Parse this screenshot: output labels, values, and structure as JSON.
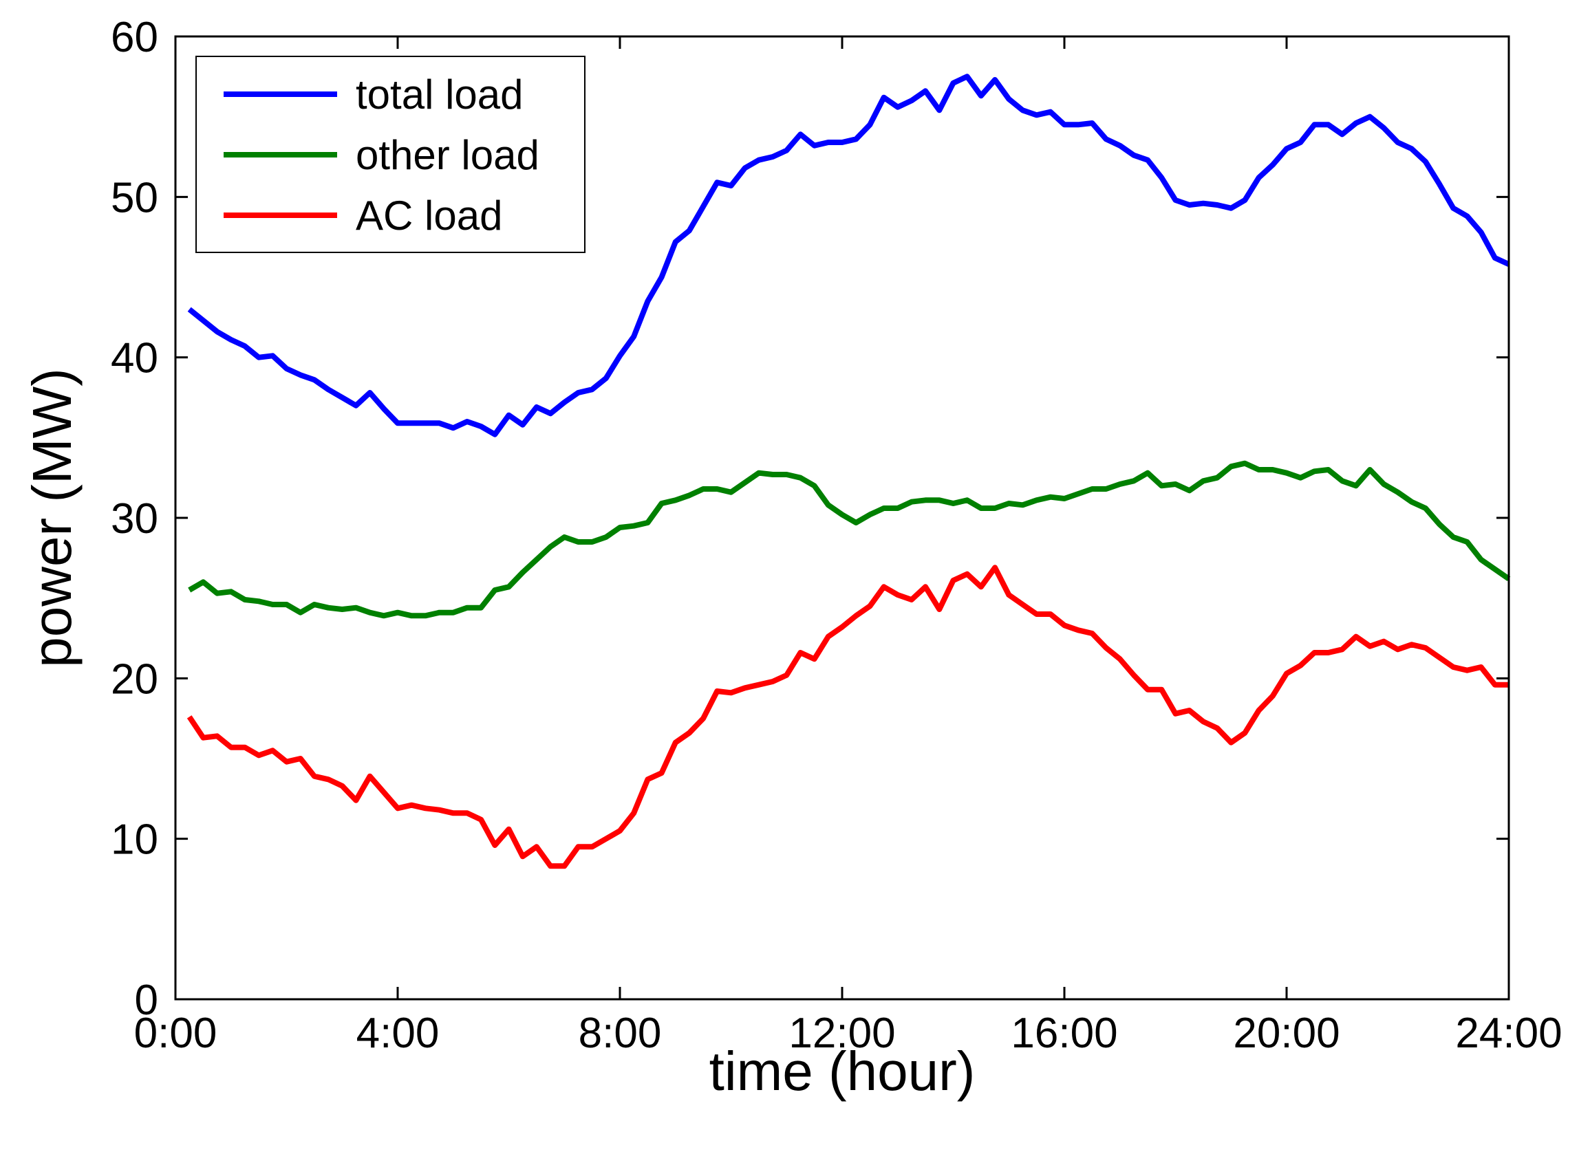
{
  "chart_data": {
    "type": "line",
    "xlabel": "time (hour)",
    "ylabel": "power (MW)",
    "xlim": [
      0,
      24
    ],
    "ylim": [
      0,
      60
    ],
    "x_ticks": [
      {
        "value": 0,
        "label": "0:00"
      },
      {
        "value": 4,
        "label": "4:00"
      },
      {
        "value": 8,
        "label": "8:00"
      },
      {
        "value": 12,
        "label": "12:00"
      },
      {
        "value": 16,
        "label": "16:00"
      },
      {
        "value": 20,
        "label": "20:00"
      },
      {
        "value": 24,
        "label": "24:00"
      }
    ],
    "y_ticks": [
      {
        "value": 0,
        "label": "0"
      },
      {
        "value": 10,
        "label": "10"
      },
      {
        "value": 20,
        "label": "20"
      },
      {
        "value": 30,
        "label": "30"
      },
      {
        "value": 40,
        "label": "40"
      },
      {
        "value": 50,
        "label": "50"
      },
      {
        "value": 60,
        "label": "60"
      }
    ],
    "grid": false,
    "legend_position": "top-left",
    "series": [
      {
        "name": "total load",
        "color": "#0000FF",
        "points": [
          [
            0.25,
            43.0
          ],
          [
            0.5,
            42.3
          ],
          [
            0.75,
            41.6
          ],
          [
            1.0,
            41.1
          ],
          [
            1.25,
            40.7
          ],
          [
            1.5,
            40.0
          ],
          [
            1.75,
            40.1
          ],
          [
            2.0,
            39.3
          ],
          [
            2.25,
            38.9
          ],
          [
            2.5,
            38.6
          ],
          [
            2.75,
            38.0
          ],
          [
            3.0,
            37.5
          ],
          [
            3.25,
            37.0
          ],
          [
            3.5,
            37.8
          ],
          [
            3.75,
            36.8
          ],
          [
            4.0,
            35.9
          ],
          [
            4.25,
            35.9
          ],
          [
            4.5,
            35.9
          ],
          [
            4.75,
            35.9
          ],
          [
            5.0,
            35.6
          ],
          [
            5.25,
            36.0
          ],
          [
            5.5,
            35.7
          ],
          [
            5.75,
            35.2
          ],
          [
            6.0,
            36.4
          ],
          [
            6.25,
            35.8
          ],
          [
            6.5,
            36.9
          ],
          [
            6.75,
            36.5
          ],
          [
            7.0,
            37.2
          ],
          [
            7.25,
            37.8
          ],
          [
            7.5,
            38.0
          ],
          [
            7.75,
            38.7
          ],
          [
            8.0,
            40.1
          ],
          [
            8.25,
            41.3
          ],
          [
            8.5,
            43.5
          ],
          [
            8.75,
            45.0
          ],
          [
            9.0,
            47.2
          ],
          [
            9.25,
            47.9
          ],
          [
            9.5,
            49.4
          ],
          [
            9.75,
            50.9
          ],
          [
            10.0,
            50.7
          ],
          [
            10.25,
            51.8
          ],
          [
            10.5,
            52.3
          ],
          [
            10.75,
            52.5
          ],
          [
            11.0,
            52.9
          ],
          [
            11.25,
            53.9
          ],
          [
            11.5,
            53.2
          ],
          [
            11.75,
            53.4
          ],
          [
            12.0,
            53.4
          ],
          [
            12.25,
            53.6
          ],
          [
            12.5,
            54.5
          ],
          [
            12.75,
            56.2
          ],
          [
            13.0,
            55.6
          ],
          [
            13.25,
            56.0
          ],
          [
            13.5,
            56.6
          ],
          [
            13.75,
            55.4
          ],
          [
            14.0,
            57.1
          ],
          [
            14.25,
            57.5
          ],
          [
            14.5,
            56.3
          ],
          [
            14.75,
            57.3
          ],
          [
            15.0,
            56.1
          ],
          [
            15.25,
            55.4
          ],
          [
            15.5,
            55.1
          ],
          [
            15.75,
            55.3
          ],
          [
            16.0,
            54.5
          ],
          [
            16.25,
            54.5
          ],
          [
            16.5,
            54.6
          ],
          [
            16.75,
            53.6
          ],
          [
            17.0,
            53.2
          ],
          [
            17.25,
            52.6
          ],
          [
            17.5,
            52.3
          ],
          [
            17.75,
            51.2
          ],
          [
            18.0,
            49.8
          ],
          [
            18.25,
            49.5
          ],
          [
            18.5,
            49.6
          ],
          [
            18.75,
            49.5
          ],
          [
            19.0,
            49.3
          ],
          [
            19.25,
            49.8
          ],
          [
            19.5,
            51.2
          ],
          [
            19.75,
            52.0
          ],
          [
            20.0,
            53.0
          ],
          [
            20.25,
            53.4
          ],
          [
            20.5,
            54.5
          ],
          [
            20.75,
            54.5
          ],
          [
            21.0,
            53.9
          ],
          [
            21.25,
            54.6
          ],
          [
            21.5,
            55.0
          ],
          [
            21.75,
            54.3
          ],
          [
            22.0,
            53.4
          ],
          [
            22.25,
            53.0
          ],
          [
            22.5,
            52.2
          ],
          [
            22.75,
            50.8
          ],
          [
            23.0,
            49.3
          ],
          [
            23.25,
            48.8
          ],
          [
            23.5,
            47.8
          ],
          [
            23.75,
            46.2
          ],
          [
            24.0,
            45.8
          ]
        ]
      },
      {
        "name": "other load",
        "color": "#008000",
        "points": [
          [
            0.25,
            25.5
          ],
          [
            0.5,
            26.0
          ],
          [
            0.75,
            25.3
          ],
          [
            1.0,
            25.4
          ],
          [
            1.25,
            24.9
          ],
          [
            1.5,
            24.8
          ],
          [
            1.75,
            24.6
          ],
          [
            2.0,
            24.6
          ],
          [
            2.25,
            24.1
          ],
          [
            2.5,
            24.6
          ],
          [
            2.75,
            24.4
          ],
          [
            3.0,
            24.3
          ],
          [
            3.25,
            24.4
          ],
          [
            3.5,
            24.1
          ],
          [
            3.75,
            23.9
          ],
          [
            4.0,
            24.1
          ],
          [
            4.25,
            23.9
          ],
          [
            4.5,
            23.9
          ],
          [
            4.75,
            24.1
          ],
          [
            5.0,
            24.1
          ],
          [
            5.25,
            24.4
          ],
          [
            5.5,
            24.4
          ],
          [
            5.75,
            25.5
          ],
          [
            6.0,
            25.7
          ],
          [
            6.25,
            26.6
          ],
          [
            6.5,
            27.4
          ],
          [
            6.75,
            28.2
          ],
          [
            7.0,
            28.8
          ],
          [
            7.25,
            28.5
          ],
          [
            7.5,
            28.5
          ],
          [
            7.75,
            28.8
          ],
          [
            8.0,
            29.4
          ],
          [
            8.25,
            29.5
          ],
          [
            8.5,
            29.7
          ],
          [
            8.75,
            30.9
          ],
          [
            9.0,
            31.1
          ],
          [
            9.25,
            31.4
          ],
          [
            9.5,
            31.8
          ],
          [
            9.75,
            31.8
          ],
          [
            10.0,
            31.6
          ],
          [
            10.25,
            32.2
          ],
          [
            10.5,
            32.8
          ],
          [
            10.75,
            32.7
          ],
          [
            11.0,
            32.7
          ],
          [
            11.25,
            32.5
          ],
          [
            11.5,
            32.0
          ],
          [
            11.75,
            30.8
          ],
          [
            12.0,
            30.2
          ],
          [
            12.25,
            29.7
          ],
          [
            12.5,
            30.2
          ],
          [
            12.75,
            30.6
          ],
          [
            13.0,
            30.6
          ],
          [
            13.25,
            31.0
          ],
          [
            13.5,
            31.1
          ],
          [
            13.75,
            31.1
          ],
          [
            14.0,
            30.9
          ],
          [
            14.25,
            31.1
          ],
          [
            14.5,
            30.6
          ],
          [
            14.75,
            30.6
          ],
          [
            15.0,
            30.9
          ],
          [
            15.25,
            30.8
          ],
          [
            15.5,
            31.1
          ],
          [
            15.75,
            31.3
          ],
          [
            16.0,
            31.2
          ],
          [
            16.25,
            31.5
          ],
          [
            16.5,
            31.8
          ],
          [
            16.75,
            31.8
          ],
          [
            17.0,
            32.1
          ],
          [
            17.25,
            32.3
          ],
          [
            17.5,
            32.8
          ],
          [
            17.75,
            32.0
          ],
          [
            18.0,
            32.1
          ],
          [
            18.25,
            31.7
          ],
          [
            18.5,
            32.3
          ],
          [
            18.75,
            32.5
          ],
          [
            19.0,
            33.2
          ],
          [
            19.25,
            33.4
          ],
          [
            19.5,
            33.0
          ],
          [
            19.75,
            33.0
          ],
          [
            20.0,
            32.8
          ],
          [
            20.25,
            32.5
          ],
          [
            20.5,
            32.9
          ],
          [
            20.75,
            33.0
          ],
          [
            21.0,
            32.3
          ],
          [
            21.25,
            32.0
          ],
          [
            21.5,
            33.0
          ],
          [
            21.75,
            32.1
          ],
          [
            22.0,
            31.6
          ],
          [
            22.25,
            31.0
          ],
          [
            22.5,
            30.6
          ],
          [
            22.75,
            29.6
          ],
          [
            23.0,
            28.8
          ],
          [
            23.25,
            28.5
          ],
          [
            23.5,
            27.4
          ],
          [
            23.75,
            26.8
          ],
          [
            24.0,
            26.2
          ]
        ]
      },
      {
        "name": "AC load",
        "color": "#FF0000",
        "points": [
          [
            0.25,
            17.6
          ],
          [
            0.5,
            16.3
          ],
          [
            0.75,
            16.4
          ],
          [
            1.0,
            15.7
          ],
          [
            1.25,
            15.7
          ],
          [
            1.5,
            15.2
          ],
          [
            1.75,
            15.5
          ],
          [
            2.0,
            14.8
          ],
          [
            2.25,
            15.0
          ],
          [
            2.5,
            13.9
          ],
          [
            2.75,
            13.7
          ],
          [
            3.0,
            13.3
          ],
          [
            3.25,
            12.4
          ],
          [
            3.5,
            13.9
          ],
          [
            3.75,
            12.9
          ],
          [
            4.0,
            11.9
          ],
          [
            4.25,
            12.1
          ],
          [
            4.5,
            11.9
          ],
          [
            4.75,
            11.8
          ],
          [
            5.0,
            11.6
          ],
          [
            5.25,
            11.6
          ],
          [
            5.5,
            11.2
          ],
          [
            5.75,
            9.6
          ],
          [
            6.0,
            10.6
          ],
          [
            6.25,
            8.9
          ],
          [
            6.5,
            9.5
          ],
          [
            6.75,
            8.3
          ],
          [
            7.0,
            8.3
          ],
          [
            7.25,
            9.5
          ],
          [
            7.5,
            9.5
          ],
          [
            7.75,
            10.0
          ],
          [
            8.0,
            10.5
          ],
          [
            8.25,
            11.6
          ],
          [
            8.5,
            13.7
          ],
          [
            8.75,
            14.1
          ],
          [
            9.0,
            16.0
          ],
          [
            9.25,
            16.6
          ],
          [
            9.5,
            17.5
          ],
          [
            9.75,
            19.2
          ],
          [
            10.0,
            19.1
          ],
          [
            10.25,
            19.4
          ],
          [
            10.5,
            19.6
          ],
          [
            10.75,
            19.8
          ],
          [
            11.0,
            20.2
          ],
          [
            11.25,
            21.6
          ],
          [
            11.5,
            21.2
          ],
          [
            11.75,
            22.6
          ],
          [
            12.0,
            23.2
          ],
          [
            12.25,
            23.9
          ],
          [
            12.5,
            24.5
          ],
          [
            12.75,
            25.7
          ],
          [
            13.0,
            25.2
          ],
          [
            13.25,
            24.9
          ],
          [
            13.5,
            25.7
          ],
          [
            13.75,
            24.3
          ],
          [
            14.0,
            26.1
          ],
          [
            14.25,
            26.5
          ],
          [
            14.5,
            25.7
          ],
          [
            14.75,
            26.9
          ],
          [
            15.0,
            25.2
          ],
          [
            15.25,
            24.6
          ],
          [
            15.5,
            24.0
          ],
          [
            15.75,
            24.0
          ],
          [
            16.0,
            23.3
          ],
          [
            16.25,
            23.0
          ],
          [
            16.5,
            22.8
          ],
          [
            16.75,
            21.9
          ],
          [
            17.0,
            21.2
          ],
          [
            17.25,
            20.2
          ],
          [
            17.5,
            19.3
          ],
          [
            17.75,
            19.3
          ],
          [
            18.0,
            17.8
          ],
          [
            18.25,
            18.0
          ],
          [
            18.5,
            17.3
          ],
          [
            18.75,
            16.9
          ],
          [
            19.0,
            16.0
          ],
          [
            19.25,
            16.6
          ],
          [
            19.5,
            18.0
          ],
          [
            19.75,
            18.9
          ],
          [
            20.0,
            20.3
          ],
          [
            20.25,
            20.8
          ],
          [
            20.5,
            21.6
          ],
          [
            20.75,
            21.6
          ],
          [
            21.0,
            21.8
          ],
          [
            21.25,
            22.6
          ],
          [
            21.5,
            22.0
          ],
          [
            21.75,
            22.3
          ],
          [
            22.0,
            21.8
          ],
          [
            22.25,
            22.1
          ],
          [
            22.5,
            21.9
          ],
          [
            22.75,
            21.3
          ],
          [
            23.0,
            20.7
          ],
          [
            23.25,
            20.5
          ],
          [
            23.5,
            20.7
          ],
          [
            23.75,
            19.6
          ],
          [
            24.0,
            19.6
          ]
        ]
      }
    ]
  }
}
